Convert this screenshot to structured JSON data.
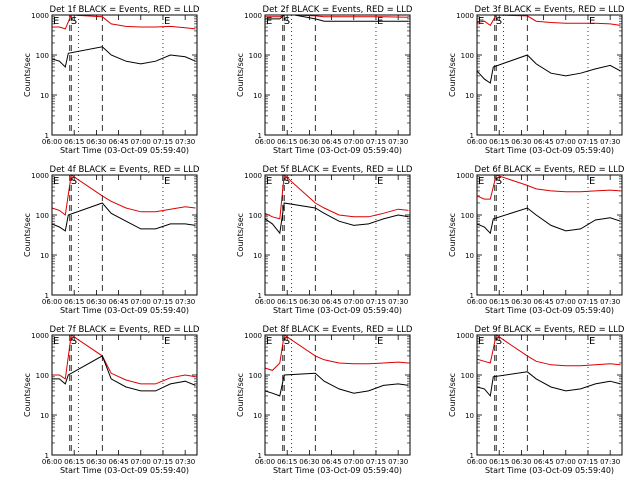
{
  "figure": {
    "panels": [
      {
        "title": "Det 1f BLACK = Events, RED = LLD"
      },
      {
        "title": "Det 2f BLACK = Events, RED = LLD"
      },
      {
        "title": "Det 3f BLACK = Events, RED = LLD"
      },
      {
        "title": "Det 4f BLACK = Events, RED = LLD"
      },
      {
        "title": "Det 5f BLACK = Events, RED = LLD"
      },
      {
        "title": "Det 6f BLACK = Events, RED = LLD"
      },
      {
        "title": "Det 7f BLACK = Events, RED = LLD"
      },
      {
        "title": "Det 8f BLACK = Events, RED = LLD"
      },
      {
        "title": "Det 9f BLACK = Events, RED = LLD"
      }
    ]
  },
  "chart_data": {
    "type": "line",
    "layout": "3x3 grid",
    "xlabel": "Start Time (03-Oct-09 05:59:40)",
    "ylabel": "Counts/sec",
    "yscale": "log",
    "ylim": [
      1,
      1000
    ],
    "xlim": [
      "06:00",
      "07:38"
    ],
    "x_ticks": [
      "06:00",
      "06:15",
      "06:30",
      "06:45",
      "07:00",
      "07:15",
      "07:30"
    ],
    "y_ticks": [
      "1",
      "10",
      "100",
      "1000"
    ],
    "series_colors": {
      "events": "#000000",
      "lld": "#dd0000"
    },
    "markers": [
      {
        "label": "E",
        "time": "06:00",
        "style": "dotted"
      },
      {
        "label": "S",
        "time": "06:12",
        "style": "dashed"
      },
      {
        "label": "",
        "time": "06:13",
        "style": "dashed"
      },
      {
        "label": "",
        "time": "06:18",
        "style": "dotted"
      },
      {
        "label": "",
        "time": "06:34",
        "style": "dashed"
      },
      {
        "label": "E",
        "time": "07:15",
        "style": "dotted"
      }
    ],
    "panels": [
      {
        "detector": "1f",
        "events": {
          "x": [
            "06:00",
            "06:05",
            "06:09",
            "06:11",
            "06:34",
            "06:40",
            "06:50",
            "07:00",
            "07:10",
            "07:20",
            "07:30",
            "07:37"
          ],
          "y": [
            80,
            70,
            50,
            110,
            160,
            100,
            70,
            60,
            70,
            100,
            90,
            70
          ]
        },
        "lld": {
          "x": [
            "06:00",
            "06:05",
            "06:09",
            "06:13",
            "06:34",
            "06:40",
            "06:50",
            "07:00",
            "07:10",
            "07:20",
            "07:30",
            "07:37"
          ],
          "y": [
            500,
            500,
            450,
            1000,
            900,
            600,
            520,
            500,
            500,
            520,
            480,
            450
          ]
        }
      },
      {
        "detector": "2f",
        "events": {
          "x": [
            "06:00",
            "06:10",
            "06:13",
            "06:20",
            "06:34",
            "06:40",
            "07:00",
            "07:20",
            "07:37"
          ],
          "y": [
            800,
            800,
            1000,
            1000,
            800,
            700,
            700,
            700,
            700
          ]
        },
        "lld": {
          "x": [
            "06:00",
            "06:10",
            "06:13",
            "06:20",
            "06:34",
            "06:40",
            "07:00",
            "07:20",
            "07:37"
          ],
          "y": [
            900,
            900,
            1000,
            1000,
            950,
            900,
            900,
            900,
            880
          ]
        }
      },
      {
        "detector": "3f",
        "events": {
          "x": [
            "06:00",
            "06:05",
            "06:09",
            "06:11",
            "06:34",
            "06:40",
            "06:50",
            "07:00",
            "07:10",
            "07:20",
            "07:30",
            "07:37"
          ],
          "y": [
            40,
            25,
            20,
            50,
            100,
            60,
            35,
            30,
            35,
            45,
            55,
            40
          ]
        },
        "lld": {
          "x": [
            "06:00",
            "06:05",
            "06:09",
            "06:13",
            "06:34",
            "06:40",
            "06:50",
            "07:00",
            "07:10",
            "07:20",
            "07:30",
            "07:37"
          ],
          "y": [
            650,
            700,
            550,
            1000,
            950,
            700,
            650,
            620,
            620,
            620,
            600,
            550
          ]
        }
      },
      {
        "detector": "4f",
        "events": {
          "x": [
            "06:00",
            "06:05",
            "06:09",
            "06:11",
            "06:34",
            "06:40",
            "06:50",
            "07:00",
            "07:10",
            "07:20",
            "07:30",
            "07:37"
          ],
          "y": [
            60,
            50,
            40,
            100,
            200,
            110,
            70,
            45,
            45,
            60,
            60,
            55
          ]
        },
        "lld": {
          "x": [
            "06:00",
            "06:05",
            "06:09",
            "06:13",
            "06:34",
            "06:40",
            "06:50",
            "07:00",
            "07:10",
            "07:20",
            "07:30",
            "07:37"
          ],
          "y": [
            150,
            130,
            100,
            1000,
            300,
            220,
            150,
            120,
            120,
            140,
            160,
            150
          ]
        }
      },
      {
        "detector": "5f",
        "events": {
          "x": [
            "06:00",
            "06:05",
            "06:10",
            "06:13",
            "06:34",
            "06:40",
            "06:50",
            "07:00",
            "07:10",
            "07:20",
            "07:30",
            "07:37"
          ],
          "y": [
            80,
            60,
            35,
            200,
            150,
            110,
            70,
            55,
            60,
            80,
            100,
            90
          ]
        },
        "lld": {
          "x": [
            "06:00",
            "06:05",
            "06:10",
            "06:13",
            "06:34",
            "06:40",
            "06:50",
            "07:00",
            "07:10",
            "07:20",
            "07:30",
            "07:37"
          ],
          "y": [
            110,
            90,
            80,
            1000,
            200,
            150,
            100,
            90,
            90,
            110,
            140,
            130
          ]
        }
      },
      {
        "detector": "6f",
        "events": {
          "x": [
            "06:00",
            "06:05",
            "06:09",
            "06:11",
            "06:34",
            "06:40",
            "06:50",
            "07:00",
            "07:10",
            "07:20",
            "07:30",
            "07:37"
          ],
          "y": [
            60,
            50,
            35,
            80,
            150,
            100,
            55,
            40,
            45,
            75,
            85,
            70
          ]
        },
        "lld": {
          "x": [
            "06:00",
            "06:05",
            "06:09",
            "06:13",
            "06:34",
            "06:40",
            "06:50",
            "07:00",
            "07:10",
            "07:20",
            "07:30",
            "07:37"
          ],
          "y": [
            300,
            250,
            250,
            1000,
            550,
            450,
            400,
            380,
            380,
            400,
            420,
            400
          ]
        }
      },
      {
        "detector": "7f",
        "events": {
          "x": [
            "06:00",
            "06:05",
            "06:09",
            "06:11",
            "06:34",
            "06:40",
            "06:50",
            "07:00",
            "07:10",
            "07:20",
            "07:30",
            "07:37"
          ],
          "y": [
            80,
            80,
            60,
            100,
            300,
            80,
            50,
            40,
            40,
            60,
            70,
            55
          ]
        },
        "lld": {
          "x": [
            "06:00",
            "06:05",
            "06:09",
            "06:13",
            "06:34",
            "06:40",
            "06:50",
            "07:00",
            "07:10",
            "07:20",
            "07:30",
            "07:37"
          ],
          "y": [
            100,
            100,
            80,
            1000,
            300,
            110,
            75,
            60,
            60,
            85,
            100,
            90
          ]
        }
      },
      {
        "detector": "8f",
        "events": {
          "x": [
            "06:00",
            "06:05",
            "06:10",
            "06:13",
            "06:34",
            "06:40",
            "06:50",
            "07:00",
            "07:10",
            "07:20",
            "07:30",
            "07:37"
          ],
          "y": [
            40,
            35,
            30,
            100,
            110,
            70,
            45,
            35,
            40,
            55,
            60,
            55
          ]
        },
        "lld": {
          "x": [
            "06:00",
            "06:05",
            "06:10",
            "06:13",
            "06:34",
            "06:40",
            "06:50",
            "07:00",
            "07:10",
            "07:20",
            "07:30",
            "07:37"
          ],
          "y": [
            150,
            130,
            200,
            1000,
            300,
            240,
            200,
            190,
            190,
            200,
            210,
            200
          ]
        }
      },
      {
        "detector": "9f",
        "events": {
          "x": [
            "06:00",
            "06:05",
            "06:09",
            "06:11",
            "06:34",
            "06:40",
            "06:50",
            "07:00",
            "07:10",
            "07:20",
            "07:30",
            "07:37"
          ],
          "y": [
            50,
            45,
            30,
            90,
            120,
            80,
            50,
            40,
            45,
            60,
            70,
            60
          ]
        },
        "lld": {
          "x": [
            "06:00",
            "06:05",
            "06:09",
            "06:13",
            "06:34",
            "06:40",
            "06:50",
            "07:00",
            "07:10",
            "07:20",
            "07:30",
            "07:37"
          ],
          "y": [
            250,
            220,
            200,
            1000,
            300,
            220,
            180,
            170,
            170,
            180,
            190,
            180
          ]
        }
      }
    ]
  }
}
